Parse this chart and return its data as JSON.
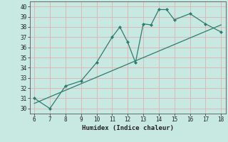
{
  "x_points": [
    6,
    7,
    8,
    9,
    10,
    11,
    11.5,
    12,
    12.5,
    13,
    13.5,
    14,
    14.5,
    15,
    16,
    17,
    18
  ],
  "y_points": [
    31,
    30,
    32.2,
    32.7,
    34.5,
    37.0,
    38.0,
    36.5,
    34.5,
    38.3,
    38.2,
    39.7,
    39.7,
    38.7,
    39.3,
    38.3,
    37.5
  ],
  "trend_x": [
    6,
    18
  ],
  "trend_y": [
    30.5,
    38.2
  ],
  "line_color": "#2e7d6e",
  "bg_color": "#c8e8e2",
  "grid_color": "#ddb8b8",
  "xlabel": "Humidex (Indice chaleur)",
  "xlim": [
    5.7,
    18.3
  ],
  "ylim": [
    29.5,
    40.5
  ],
  "yticks": [
    30,
    31,
    32,
    33,
    34,
    35,
    36,
    37,
    38,
    39,
    40
  ],
  "xticks": [
    6,
    7,
    8,
    9,
    10,
    11,
    12,
    13,
    14,
    15,
    16,
    17,
    18
  ]
}
